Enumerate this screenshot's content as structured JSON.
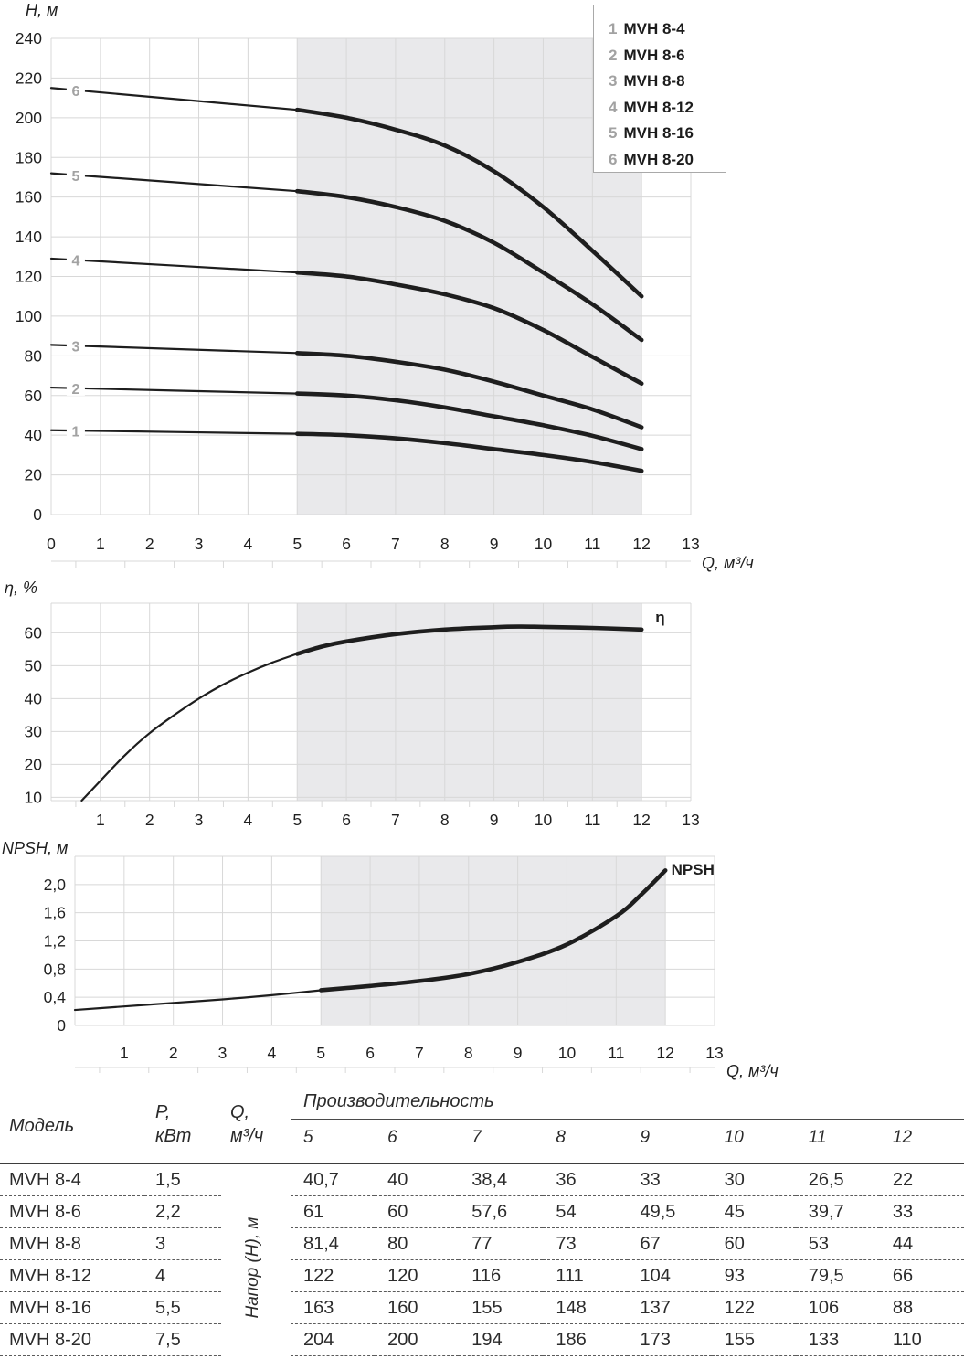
{
  "colors": {
    "curve": "#1e1e1e",
    "shade": "#e9e9eb",
    "grid": "#d8d8d8",
    "curve_number_gray": "#a2a2a2",
    "text": "#2b2b2b",
    "legend_border": "#a9a9a9"
  },
  "legend": {
    "items": [
      {
        "num": "1",
        "model": "MVH 8-4"
      },
      {
        "num": "2",
        "model": "MVH 8-6"
      },
      {
        "num": "3",
        "model": "MVH 8-8"
      },
      {
        "num": "4",
        "model": "MVH 8-12"
      },
      {
        "num": "5",
        "model": "MVH 8-16"
      },
      {
        "num": "6",
        "model": "MVH 8-20"
      }
    ]
  },
  "chart_data": [
    {
      "name": "head-flow-chart",
      "type": "line",
      "ylabel": "H, м",
      "xlabel": "Q, м³/ч",
      "xlim": [
        0,
        13
      ],
      "ylim": [
        0,
        240
      ],
      "x_tick_start": 0,
      "shaded_x": [
        5,
        12
      ],
      "y_ticks": [
        {
          "v": 0,
          "label": "0"
        },
        {
          "v": 20,
          "label": "20"
        },
        {
          "v": 40,
          "label": "40"
        },
        {
          "v": 60,
          "label": "60"
        },
        {
          "v": 80,
          "label": "80"
        },
        {
          "v": 100,
          "label": "100"
        },
        {
          "v": 120,
          "label": "120"
        },
        {
          "v": 140,
          "label": "140"
        },
        {
          "v": 160,
          "label": "160"
        },
        {
          "v": 180,
          "label": "180"
        },
        {
          "v": 200,
          "label": "200"
        },
        {
          "v": 220,
          "label": "220"
        },
        {
          "v": 240,
          "label": "240"
        }
      ],
      "series": [
        {
          "name": "MVH 8-4",
          "curve_label": "1",
          "label_at": [
            0.5,
            42.2
          ],
          "points": [
            [
              0,
              42.5
            ],
            [
              5,
              40.7
            ],
            [
              6,
              40
            ],
            [
              7,
              38.4
            ],
            [
              8,
              36
            ],
            [
              9,
              33
            ],
            [
              10,
              30
            ],
            [
              11,
              26.5
            ],
            [
              12,
              22
            ]
          ]
        },
        {
          "name": "MVH 8-6",
          "curve_label": "2",
          "label_at": [
            0.5,
            63.6
          ],
          "points": [
            [
              0,
              64
            ],
            [
              5,
              61
            ],
            [
              6,
              60
            ],
            [
              7,
              57.6
            ],
            [
              8,
              54
            ],
            [
              9,
              49.5
            ],
            [
              10,
              45
            ],
            [
              11,
              39.7
            ],
            [
              12,
              33
            ]
          ]
        },
        {
          "name": "MVH 8-8",
          "curve_label": "3",
          "label_at": [
            0.5,
            85
          ],
          "points": [
            [
              0,
              85.5
            ],
            [
              5,
              81.4
            ],
            [
              6,
              80
            ],
            [
              7,
              77
            ],
            [
              8,
              73
            ],
            [
              9,
              67
            ],
            [
              10,
              60
            ],
            [
              11,
              53
            ],
            [
              12,
              44
            ]
          ]
        },
        {
          "name": "MVH 8-12",
          "curve_label": "4",
          "label_at": [
            0.5,
            128.3
          ],
          "points": [
            [
              0,
              129
            ],
            [
              5,
              122
            ],
            [
              6,
              120
            ],
            [
              7,
              116
            ],
            [
              8,
              111
            ],
            [
              9,
              104
            ],
            [
              10,
              93
            ],
            [
              11,
              79.5
            ],
            [
              12,
              66
            ]
          ]
        },
        {
          "name": "MVH 8-16",
          "curve_label": "5",
          "label_at": [
            0.5,
            171
          ],
          "points": [
            [
              0,
              172
            ],
            [
              5,
              163
            ],
            [
              6,
              160
            ],
            [
              7,
              155
            ],
            [
              8,
              148
            ],
            [
              9,
              137
            ],
            [
              10,
              122
            ],
            [
              11,
              106
            ],
            [
              12,
              88
            ]
          ]
        },
        {
          "name": "MVH 8-20",
          "curve_label": "6",
          "label_at": [
            0.5,
            213.8
          ],
          "points": [
            [
              0,
              215
            ],
            [
              5,
              204
            ],
            [
              6,
              200
            ],
            [
              7,
              194
            ],
            [
              8,
              186
            ],
            [
              9,
              173
            ],
            [
              10,
              155
            ],
            [
              11,
              133
            ],
            [
              12,
              110
            ]
          ]
        }
      ]
    },
    {
      "name": "efficiency-chart",
      "type": "line",
      "ylabel": "η, %",
      "xlabel": "",
      "xlim": [
        0,
        13
      ],
      "ylim": [
        9,
        69
      ],
      "x_tick_start": 1,
      "shaded_x": [
        5,
        12
      ],
      "y_ticks": [
        {
          "v": 10,
          "label": "10"
        },
        {
          "v": 20,
          "label": "20"
        },
        {
          "v": 30,
          "label": "30"
        },
        {
          "v": 40,
          "label": "40"
        },
        {
          "v": 50,
          "label": "50"
        },
        {
          "v": 60,
          "label": "60"
        }
      ],
      "series": [
        {
          "name": "η",
          "points": [
            [
              0.62,
              9
            ],
            [
              1,
              15
            ],
            [
              1.5,
              22.8
            ],
            [
              2,
              29.5
            ],
            [
              2.5,
              35
            ],
            [
              3,
              40
            ],
            [
              3.5,
              44.3
            ],
            [
              4,
              47.9
            ],
            [
              4.5,
              51
            ],
            [
              5,
              53.6
            ],
            [
              5.5,
              55.8
            ],
            [
              6,
              57.4
            ],
            [
              7,
              59.6
            ],
            [
              8,
              61
            ],
            [
              9,
              61.7
            ],
            [
              9.5,
              61.9
            ],
            [
              10,
              61.8
            ],
            [
              11,
              61.5
            ],
            [
              12,
              61
            ]
          ]
        }
      ],
      "annotation": {
        "text": "η",
        "x": 12.28,
        "y": 63.2
      }
    },
    {
      "name": "npsh-chart",
      "type": "line",
      "ylabel": "NPSH, м",
      "xlabel": "Q, м³/ч",
      "xlim": [
        0,
        13
      ],
      "ylim": [
        0,
        2.4
      ],
      "x_tick_start": 1,
      "shaded_x": [
        5,
        12
      ],
      "y_ticks": [
        {
          "v": 0,
          "label": "0"
        },
        {
          "v": 0.4,
          "label": "0,4"
        },
        {
          "v": 0.8,
          "label": "0,8"
        },
        {
          "v": 1.2,
          "label": "1,2"
        },
        {
          "v": 1.6,
          "label": "1,6"
        },
        {
          "v": 2.0,
          "label": "2,0"
        }
      ],
      "series": [
        {
          "name": "NPSH",
          "points": [
            [
              0,
              0.22
            ],
            [
              1,
              0.27
            ],
            [
              2,
              0.32
            ],
            [
              3,
              0.37
            ],
            [
              4,
              0.43
            ],
            [
              5,
              0.5
            ],
            [
              6,
              0.56
            ],
            [
              7,
              0.63
            ],
            [
              8,
              0.73
            ],
            [
              9,
              0.9
            ],
            [
              10,
              1.15
            ],
            [
              11,
              1.55
            ],
            [
              11.5,
              1.85
            ],
            [
              12,
              2.2
            ]
          ]
        }
      ],
      "annotation": {
        "text": "NPSH",
        "x": 12.12,
        "y": 2.14
      }
    }
  ],
  "table": {
    "headers": {
      "model": "Модель",
      "power_line1": "P,",
      "power_line2": "кВт",
      "flow_line1": "Q,",
      "flow_line2": "м³/ч",
      "performance": "Производительность",
      "head_axis": "Напор (H), м",
      "q_columns": [
        "5",
        "6",
        "7",
        "8",
        "9",
        "10",
        "11",
        "12"
      ]
    },
    "rows": [
      {
        "model": "MVH 8-4",
        "power_kw": "1,5",
        "head_m": [
          "40,7",
          "40",
          "38,4",
          "36",
          "33",
          "30",
          "26,5",
          "22"
        ]
      },
      {
        "model": "MVH 8-6",
        "power_kw": "2,2",
        "head_m": [
          "61",
          "60",
          "57,6",
          "54",
          "49,5",
          "45",
          "39,7",
          "33"
        ]
      },
      {
        "model": "MVH 8-8",
        "power_kw": "3",
        "head_m": [
          "81,4",
          "80",
          "77",
          "73",
          "67",
          "60",
          "53",
          "44"
        ]
      },
      {
        "model": "MVH 8-12",
        "power_kw": "4",
        "head_m": [
          "122",
          "120",
          "116",
          "111",
          "104",
          "93",
          "79,5",
          "66"
        ]
      },
      {
        "model": "MVH 8-16",
        "power_kw": "5,5",
        "head_m": [
          "163",
          "160",
          "155",
          "148",
          "137",
          "122",
          "106",
          "88"
        ]
      },
      {
        "model": "MVH 8-20",
        "power_kw": "7,5",
        "head_m": [
          "204",
          "200",
          "194",
          "186",
          "173",
          "155",
          "133",
          "110"
        ]
      }
    ]
  }
}
